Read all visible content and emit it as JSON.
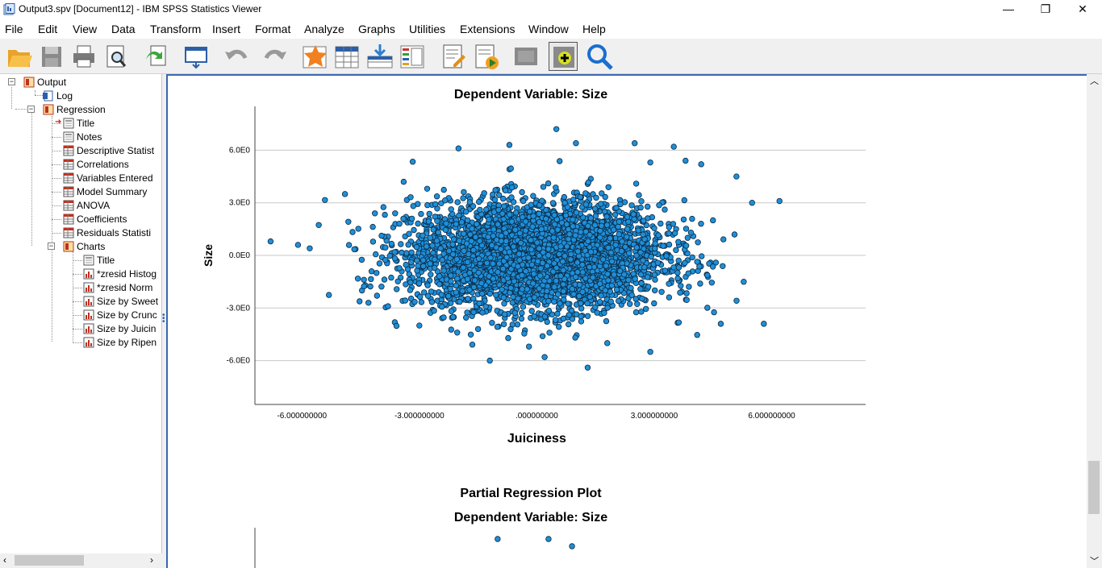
{
  "window": {
    "title": "Output3.spv [Document12] - IBM SPSS Statistics Viewer",
    "minimize": "—",
    "restore": "❐",
    "close": "✕"
  },
  "menu": [
    "File",
    "Edit",
    "View",
    "Data",
    "Transform",
    "Insert",
    "Format",
    "Analyze",
    "Graphs",
    "Utilities",
    "Extensions",
    "Window",
    "Help"
  ],
  "toolbar": [
    "open-icon",
    "save-icon",
    "print-icon",
    "print-preview-icon",
    "export-icon",
    "recall-dialog-icon",
    "undo-icon",
    "redo-icon",
    "goto-case-icon",
    "goto-variable-icon",
    "insert-cases-icon",
    "variables-icon",
    "designate-window-icon",
    "run-script-icon",
    "select-icon",
    "add-output-icon",
    "search-icon"
  ],
  "tree": {
    "output": "Output",
    "log": "Log",
    "regression": "Regression",
    "regression_items": [
      "Title",
      "Notes",
      "Descriptive Statist",
      "Correlations",
      "Variables Entered",
      "Model Summary",
      "ANOVA",
      "Coefficients",
      "Residuals Statisti"
    ],
    "charts": "Charts",
    "chart_items": [
      "Title",
      "*zresid Histog",
      "*zresid Norm",
      "Size by Sweet",
      "Size by Crunc",
      "Size by Juicin",
      "Size by Ripen"
    ]
  },
  "chart_data": [
    {
      "type": "scatter",
      "title": "Dependent Variable: Size",
      "xlabel": "Juiciness",
      "ylabel": "Size",
      "xlim": [
        -7.2,
        8.4
      ],
      "ylim": [
        -8.5,
        8.5
      ],
      "x_ticks": [
        -6,
        -3,
        0,
        3,
        6
      ],
      "x_tick_labels": [
        "-6.000000000",
        "-3.000000000",
        ".000000000",
        "3.000000000",
        "6.000000000"
      ],
      "y_ticks": [
        6,
        3,
        0,
        -3,
        -6
      ],
      "y_tick_labels": [
        "6.0E0",
        "3.0E0",
        "0.0E0",
        "-3.0E0",
        "-6.0E0"
      ],
      "grid": true,
      "point_color": "#1f8fd8",
      "point_count_estimate": 4000,
      "points": [
        [
          -6.8,
          0.8
        ],
        [
          -6.1,
          0.6
        ],
        [
          -5.8,
          0.4
        ],
        [
          -4.9,
          3.5
        ],
        [
          -4.3,
          -2.7
        ],
        [
          -3.8,
          -2.9
        ],
        [
          -3.4,
          4.2
        ],
        [
          -3.0,
          -4.0
        ],
        [
          -2.0,
          6.1
        ],
        [
          -1.2,
          -6.0
        ],
        [
          -0.7,
          6.3
        ],
        [
          -0.2,
          -5.2
        ],
        [
          0.5,
          7.2
        ],
        [
          1.0,
          6.4
        ],
        [
          1.3,
          -6.4
        ],
        [
          2.5,
          6.4
        ],
        [
          3.5,
          6.2
        ],
        [
          3.8,
          5.4
        ],
        [
          4.2,
          5.2
        ],
        [
          5.1,
          4.5
        ],
        [
          5.5,
          3.0
        ],
        [
          6.2,
          3.1
        ],
        [
          5.8,
          -3.9
        ],
        [
          4.7,
          -3.9
        ],
        [
          2.9,
          -5.5
        ],
        [
          0.2,
          -5.8
        ],
        [
          -1.5,
          -4.2
        ],
        [
          1.8,
          -5.0
        ],
        [
          -2.8,
          3.8
        ],
        [
          2.9,
          5.3
        ],
        [
          4.5,
          2.0
        ]
      ],
      "cloud_sd": {
        "x": 1.6,
        "y": 1.5
      }
    },
    {
      "type": "scatter",
      "title": "Dependent Variable: Size",
      "heading": "Partial Regression Plot",
      "points": [
        [
          -1.0,
          7.8
        ],
        [
          0.3,
          7.8
        ],
        [
          0.9,
          7.6
        ]
      ]
    }
  ]
}
